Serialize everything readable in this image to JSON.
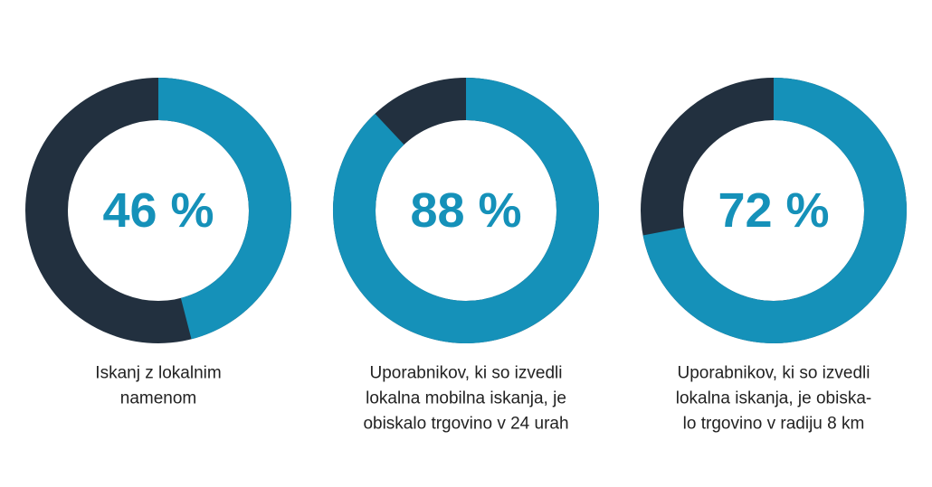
{
  "chart_data": [
    {
      "type": "donut",
      "values": [
        46
      ],
      "value_labels": [
        "46 %"
      ],
      "color": "#1591b9",
      "track_color": "#22303f",
      "caption": [
        "Iskanj z lokalnim",
        "namenom"
      ]
    },
    {
      "type": "donut",
      "values": [
        88
      ],
      "value_labels": [
        "88 %"
      ],
      "color": "#1591b9",
      "track_color": "#22303f",
      "caption": [
        "Uporabnikov, ki so izvedli",
        "lokalna mobilna iskanja, je",
        "obiskalo trgovino v 24 urah"
      ]
    },
    {
      "type": "donut",
      "values": [
        72
      ],
      "value_labels": [
        "72 %"
      ],
      "color": "#1591b9",
      "track_color": "#22303f",
      "caption": [
        "Uporabnikov, ki so izvedli",
        "lokalna iskanja, je obiska-",
        "lo trgovino v radiju 8 km"
      ]
    }
  ]
}
